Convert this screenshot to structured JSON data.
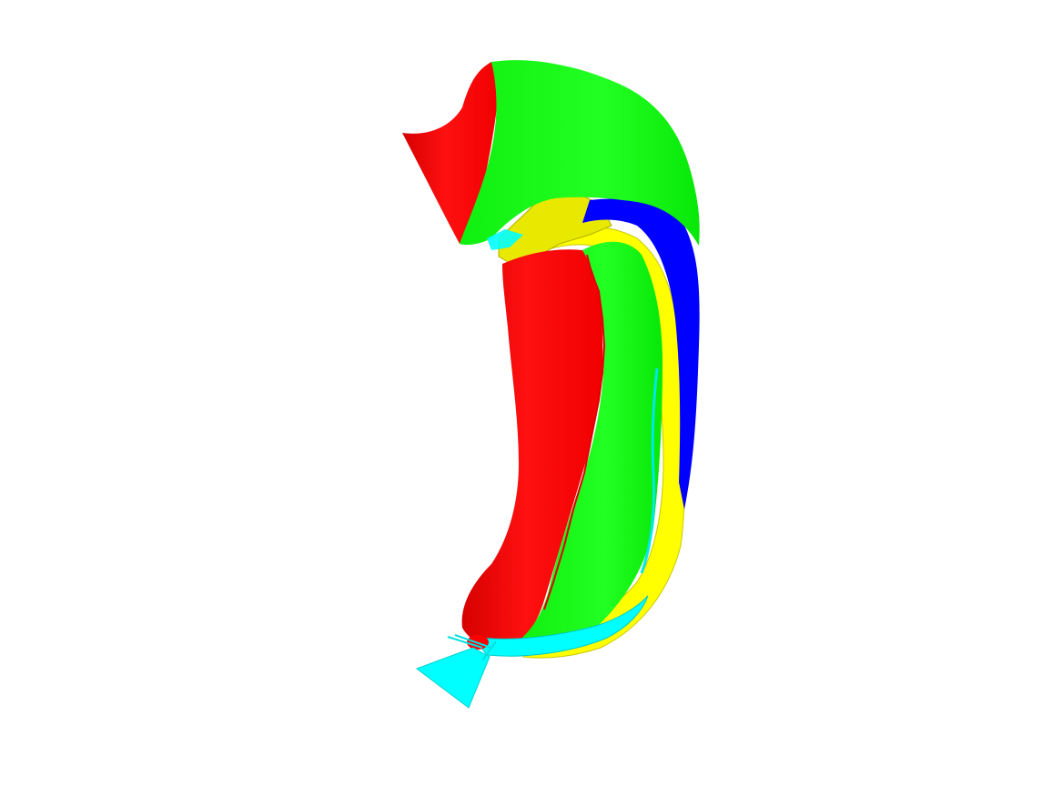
{
  "scene": {
    "background_color": "#ffffff",
    "object": "hippocampus-surface-segmentation",
    "region_colors": {
      "red": "#ff0000",
      "green": "#00ff00",
      "blue": "#0000ff",
      "yellow": "#ffff00",
      "cyan": "#00ffff"
    }
  }
}
